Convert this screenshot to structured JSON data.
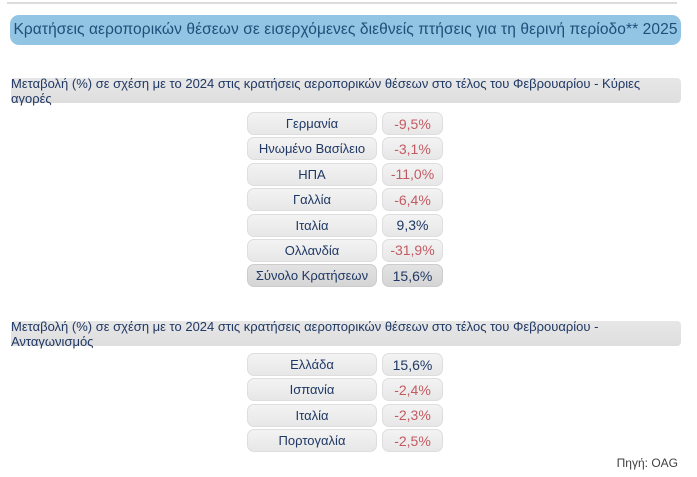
{
  "title": "Κρατήσεις αεροπορικών θέσεων σε εισερχόμενες διεθνείς πτήσεις για τη θερινή περίοδο** 2025",
  "source": "Πηγή: OAG",
  "colors": {
    "title_bar_bg": "#92C5E4",
    "title_text": "#1F4E79",
    "section_header_bg": "#E2E2E2",
    "pill_bg": "#EFEFEF",
    "total_pill_bg": "#DCDCDC",
    "navy_text": "#1F3864",
    "negative_text": "#C35A62"
  },
  "tables": [
    {
      "header": "Μεταβολή (%) σε σχέση με το 2024 στις κρατήσεις αεροπορικών θέσεων στο τέλος του Φεβρουαρίου - Κύριες αγορές",
      "rows": [
        {
          "label": "Γερμανία",
          "value": "-9,5%",
          "negative": true,
          "total": false
        },
        {
          "label": "Ηνωμένο Βασίλειο",
          "value": "-3,1%",
          "negative": true,
          "total": false
        },
        {
          "label": "ΗΠΑ",
          "value": "-11,0%",
          "negative": true,
          "total": false
        },
        {
          "label": "Γαλλία",
          "value": "-6,4%",
          "negative": true,
          "total": false
        },
        {
          "label": "Ιταλία",
          "value": "9,3%",
          "negative": false,
          "total": false
        },
        {
          "label": "Ολλανδία",
          "value": "-31,9%",
          "negative": true,
          "total": false
        },
        {
          "label": "Σύνολο Κρατήσεων",
          "value": "15,6%",
          "negative": false,
          "total": true
        }
      ]
    },
    {
      "header": "Μεταβολή (%) σε σχέση με το 2024 στις κρατήσεις αεροπορικών θέσεων στο τέλος του Φεβρουαρίου - Ανταγωνισμός",
      "rows": [
        {
          "label": "Ελλάδα",
          "value": "15,6%",
          "negative": false,
          "total": false
        },
        {
          "label": "Ισπανία",
          "value": "-2,4%",
          "negative": true,
          "total": false
        },
        {
          "label": "Ιταλία",
          "value": "-2,3%",
          "negative": true,
          "total": false
        },
        {
          "label": "Πορτογαλία",
          "value": "-2,5%",
          "negative": true,
          "total": false
        }
      ]
    }
  ],
  "chart_data": [
    {
      "type": "table",
      "title": "Μεταβολή (%) σε σχέση με το 2024 στις κρατήσεις αεροπορικών θέσεων στο τέλος του Φεβρουαρίου - Κύριες αγορές",
      "categories": [
        "Γερμανία",
        "Ηνωμένο Βασίλειο",
        "ΗΠΑ",
        "Γαλλία",
        "Ιταλία",
        "Ολλανδία",
        "Σύνολο Κρατήσεων"
      ],
      "values": [
        -9.5,
        -3.1,
        -11.0,
        -6.4,
        9.3,
        -31.9,
        15.6
      ],
      "unit": "%"
    },
    {
      "type": "table",
      "title": "Μεταβολή (%) σε σχέση με το 2024 στις κρατήσεις αεροπορικών θέσεων στο τέλος του Φεβρουαρίου - Ανταγωνισμός",
      "categories": [
        "Ελλάδα",
        "Ισπανία",
        "Ιταλία",
        "Πορτογαλία"
      ],
      "values": [
        15.6,
        -2.4,
        -2.3,
        -2.5
      ],
      "unit": "%"
    }
  ]
}
